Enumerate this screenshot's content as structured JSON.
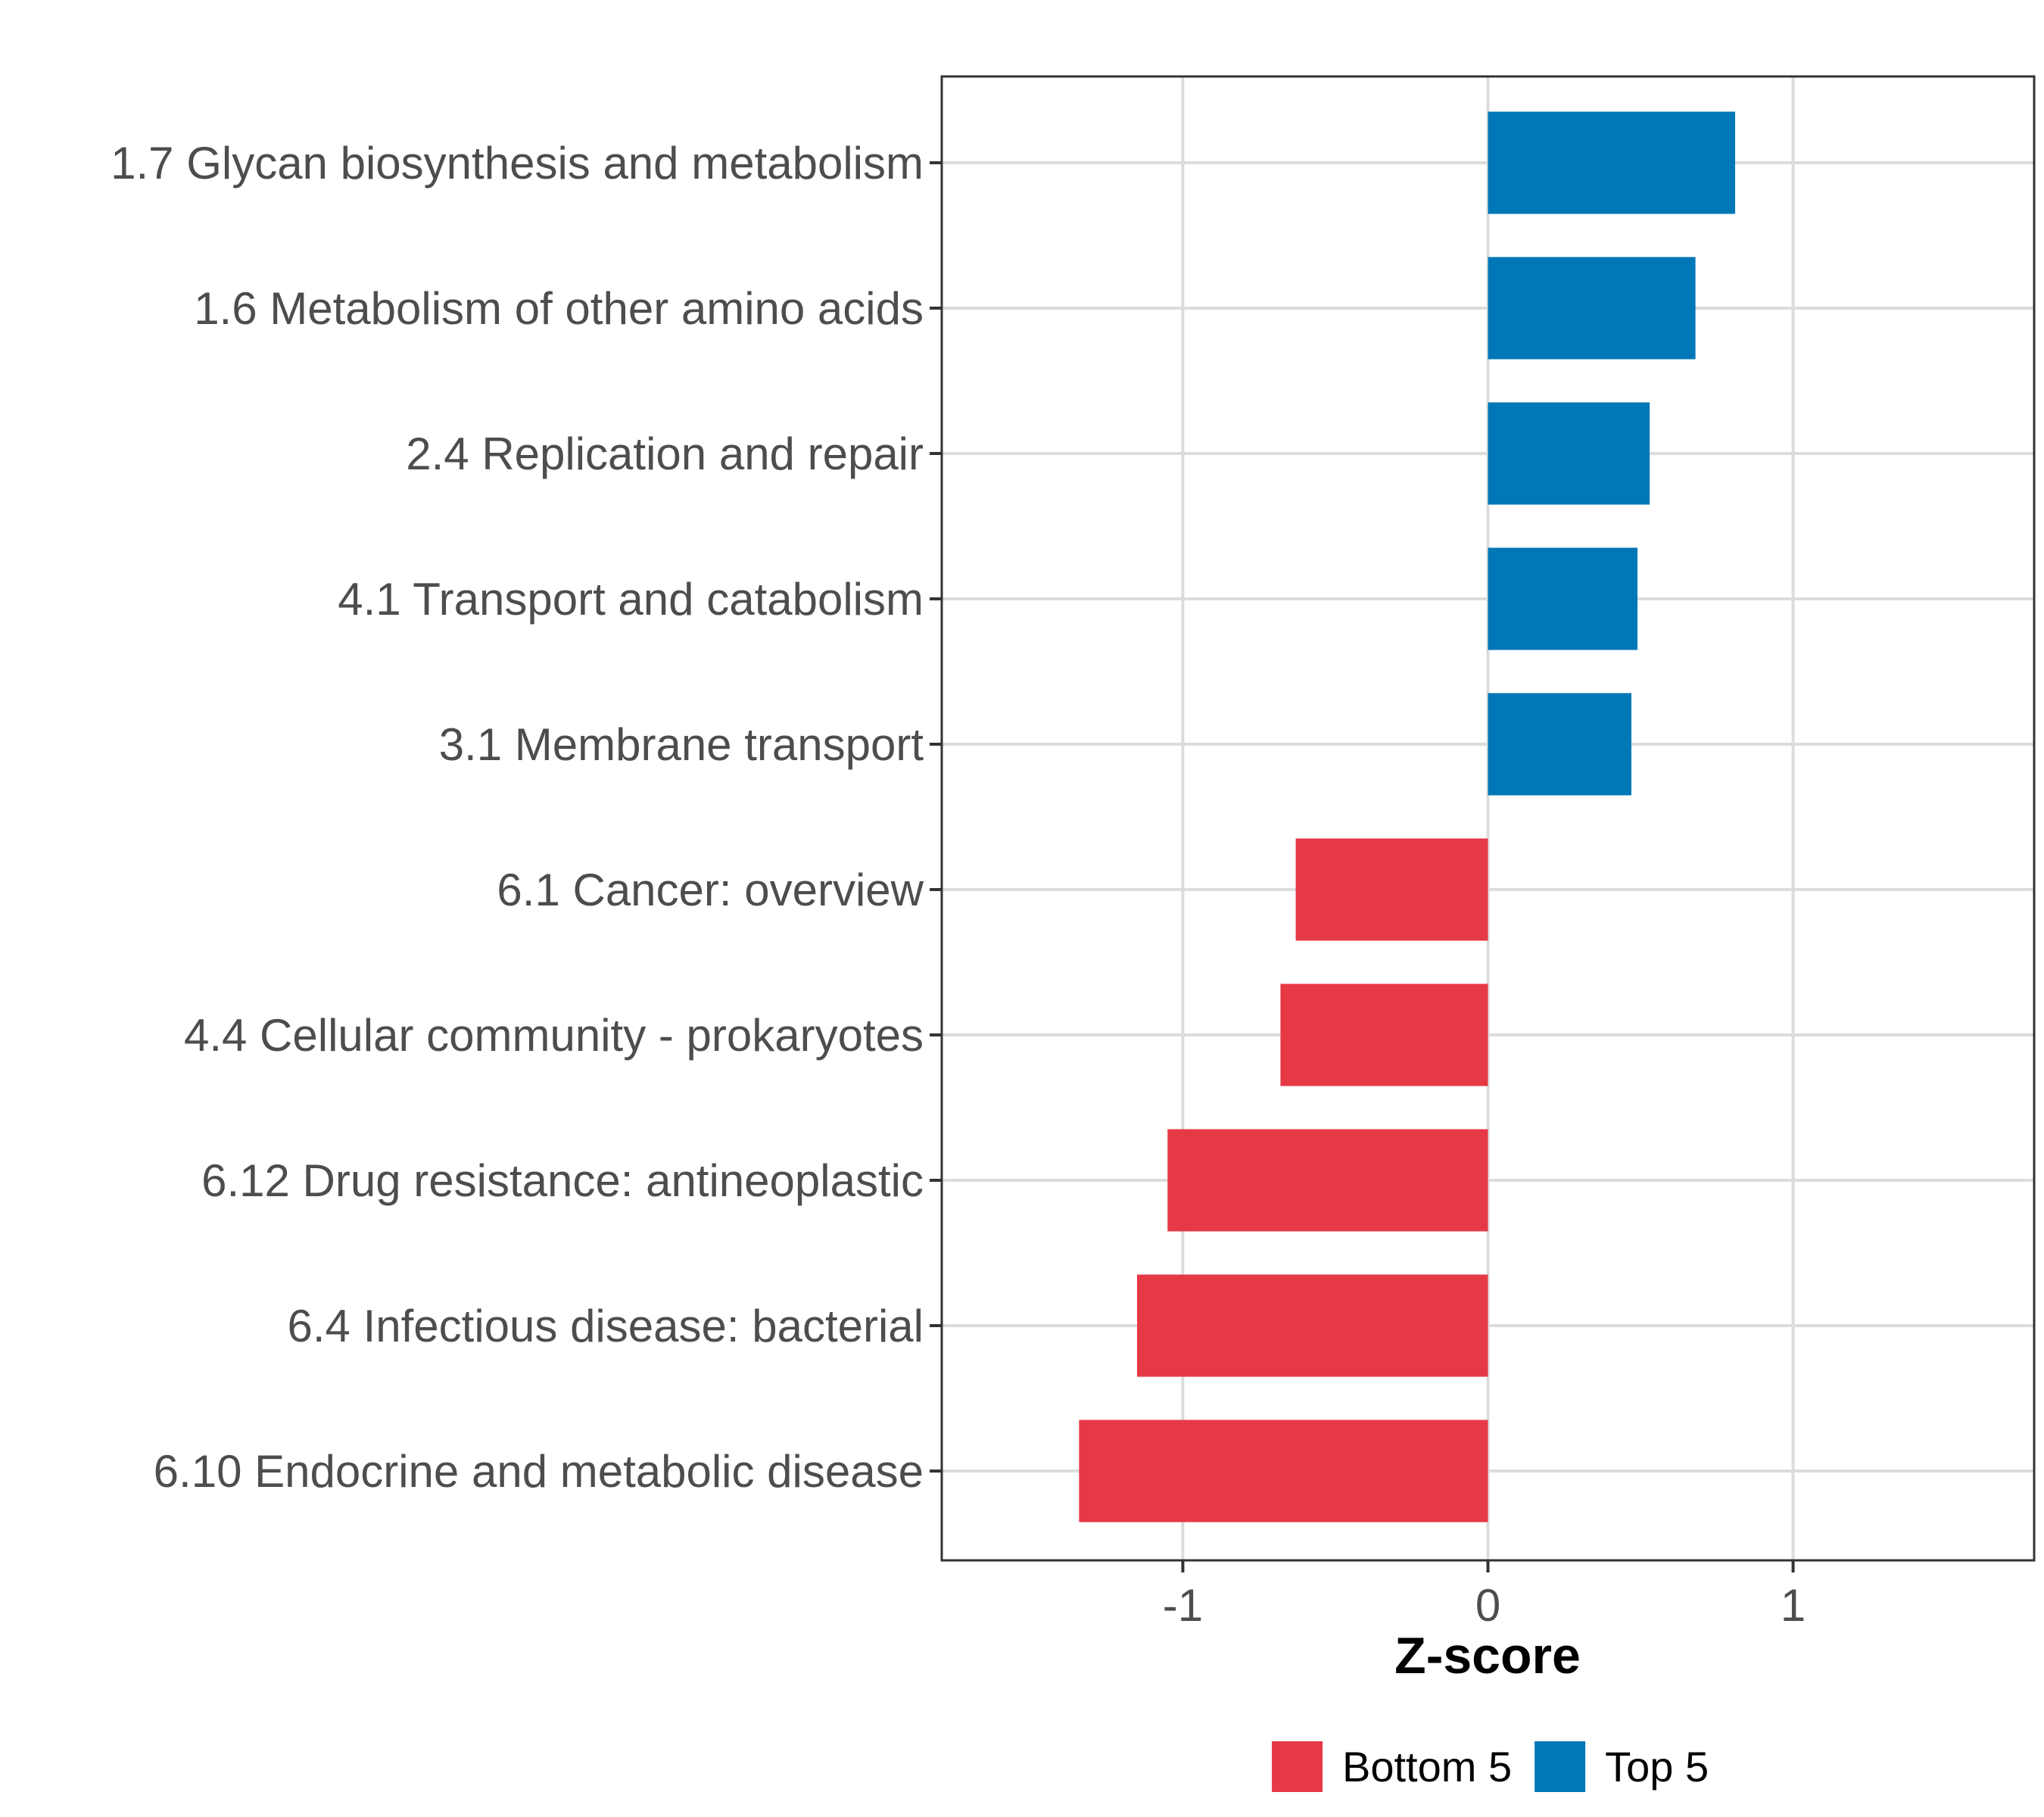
{
  "chart_data": {
    "type": "bar",
    "orientation": "horizontal",
    "categories": [
      "1.7 Glycan biosynthesis and metabolism",
      "1.6 Metabolism of other amino acids",
      "2.4 Replication and repair",
      "4.1 Transport and catabolism",
      "3.1 Membrane transport",
      "6.1 Cancer: overview",
      "4.4 Cellular community - prokaryotes",
      "6.12 Drug resistance: antineoplastic",
      "6.4 Infectious disease: bacterial",
      "6.10 Endocrine and metabolic disease"
    ],
    "values": [
      0.81,
      0.68,
      0.53,
      0.49,
      0.47,
      -0.63,
      -0.68,
      -1.05,
      -1.15,
      -1.34
    ],
    "groups": [
      "Top 5",
      "Top 5",
      "Top 5",
      "Top 5",
      "Top 5",
      "Bottom 5",
      "Bottom 5",
      "Bottom 5",
      "Bottom 5",
      "Bottom 5"
    ],
    "xlabel": "Z-score",
    "ylabel": "",
    "xlim": [
      -1.79,
      1.79
    ],
    "xticks": [
      -1,
      0,
      1
    ],
    "xtick_labels": [
      "-1",
      "0",
      "1"
    ],
    "grid": true,
    "legend": {
      "position": "bottom",
      "entries": [
        {
          "label": "Bottom 5",
          "color": "#e63946"
        },
        {
          "label": "Top 5",
          "color": "#0077b6"
        }
      ]
    }
  }
}
